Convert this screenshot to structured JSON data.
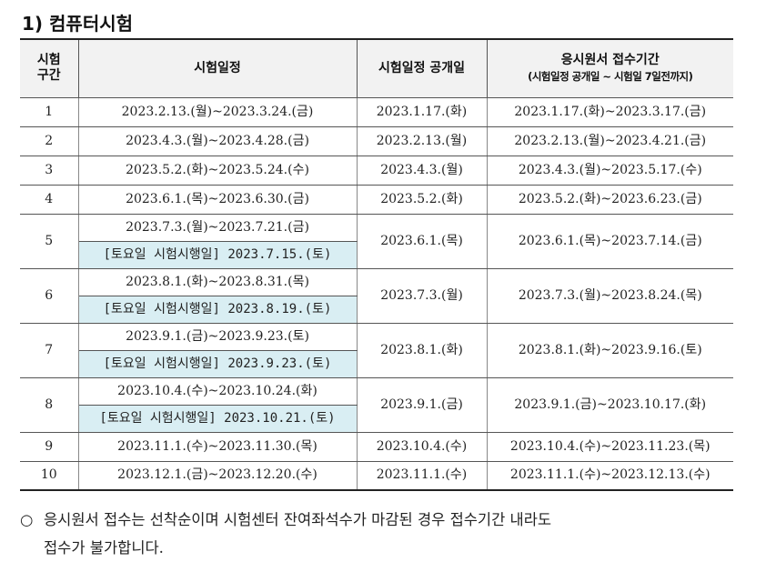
{
  "section_title": "1) 컴퓨터시험",
  "table": {
    "headers": {
      "col1": "시험\n구간",
      "col2": "시험일정",
      "col3": "시험일정 공개일",
      "col4": "응시원서 접수기간",
      "col4_sub": "(시험일정 공개일 ~ 시험일 7일전까지)"
    },
    "rows": [
      {
        "no": "1",
        "schedule": "2023.2.13.(월)~2023.3.24.(금)",
        "saturday": null,
        "open": "2023.1.17.(화)",
        "reg": "2023.1.17.(화)~2023.3.17.(금)"
      },
      {
        "no": "2",
        "schedule": "2023.4.3.(월)~2023.4.28.(금)",
        "saturday": null,
        "open": "2023.2.13.(월)",
        "reg": "2023.2.13.(월)~2023.4.21.(금)"
      },
      {
        "no": "3",
        "schedule": "2023.5.2.(화)~2023.5.24.(수)",
        "saturday": null,
        "open": "2023.4.3.(월)",
        "reg": "2023.4.3.(월)~2023.5.17.(수)"
      },
      {
        "no": "4",
        "schedule": "2023.6.1.(목)~2023.6.30.(금)",
        "saturday": null,
        "open": "2023.5.2.(화)",
        "reg": "2023.5.2.(화)~2023.6.23.(금)"
      },
      {
        "no": "5",
        "schedule": "2023.7.3.(월)~2023.7.21.(금)",
        "saturday": "[토요일 시험시행일] 2023.7.15.(토)",
        "open": "2023.6.1.(목)",
        "reg": "2023.6.1.(목)~2023.7.14.(금)"
      },
      {
        "no": "6",
        "schedule": "2023.8.1.(화)~2023.8.31.(목)",
        "saturday": "[토요일 시험시행일] 2023.8.19.(토)",
        "open": "2023.7.3.(월)",
        "reg": "2023.7.3.(월)~2023.8.24.(목)"
      },
      {
        "no": "7",
        "schedule": "2023.9.1.(금)~2023.9.23.(토)",
        "saturday": "[토요일 시험시행일] 2023.9.23.(토)",
        "open": "2023.8.1.(화)",
        "reg": "2023.8.1.(화)~2023.9.16.(토)"
      },
      {
        "no": "8",
        "schedule": "2023.10.4.(수)~2023.10.24.(화)",
        "saturday": "[토요일 시험시행일] 2023.10.21.(토)",
        "open": "2023.9.1.(금)",
        "reg": "2023.9.1.(금)~2023.10.17.(화)"
      },
      {
        "no": "9",
        "schedule": "2023.11.1.(수)~2023.11.30.(목)",
        "saturday": null,
        "open": "2023.10.4.(수)",
        "reg": "2023.10.4.(수)~2023.11.23.(목)"
      },
      {
        "no": "10",
        "schedule": "2023.12.1.(금)~2023.12.20.(수)",
        "saturday": null,
        "open": "2023.11.1.(수)",
        "reg": "2023.11.1.(수)~2023.12.13.(수)"
      }
    ]
  },
  "note": {
    "bullet": "○",
    "line1": "응시원서 접수는 선착순이며 시험센터 잔여좌석수가 마감된 경우 접수기간 내라도",
    "line2": "접수가 불가합니다."
  },
  "colors": {
    "saturday_bg": "#d9eef3",
    "header_bg": "#f2f2f2"
  }
}
